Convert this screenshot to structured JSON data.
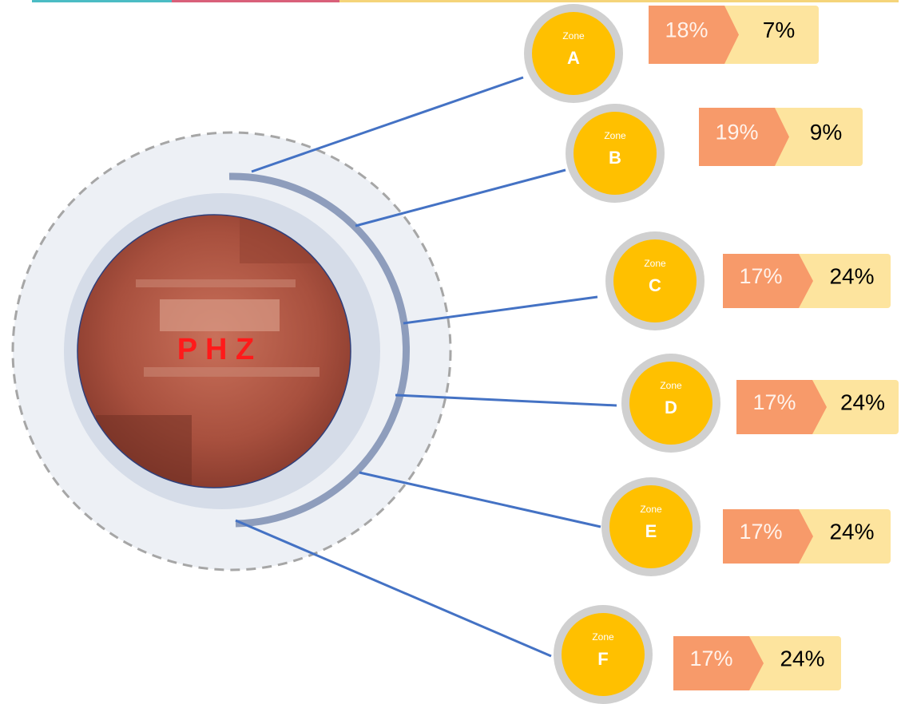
{
  "center_label": "P H Z",
  "zones": [
    {
      "caption": "Zone",
      "letter": "A",
      "primary": "18%",
      "secondary": "7%"
    },
    {
      "caption": "Zone",
      "letter": "B",
      "primary": "19%",
      "secondary": "9%"
    },
    {
      "caption": "Zone",
      "letter": "C",
      "primary": "17%",
      "secondary": "24%"
    },
    {
      "caption": "Zone",
      "letter": "D",
      "primary": "17%",
      "secondary": "24%"
    },
    {
      "caption": "Zone",
      "letter": "E",
      "primary": "17%",
      "secondary": "24%"
    },
    {
      "caption": "Zone",
      "letter": "F",
      "primary": "17%",
      "secondary": "24%"
    }
  ]
}
